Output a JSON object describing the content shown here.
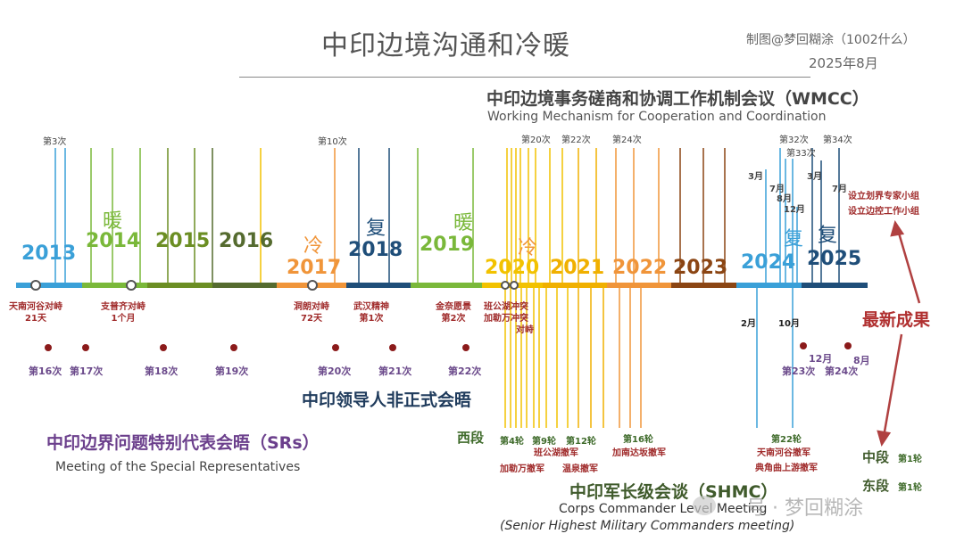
{
  "header": {
    "title": "中印边境沟通和冷暖",
    "credit": "制图@梦回糊涂（1002什么）",
    "date": "2025年8月"
  },
  "wmcc": {
    "title_zh": "中印边境事务磋商和协调工作机制会议（WMCC）",
    "title_en": "Working Mechanism for Cooperation and Coordination",
    "round_labels": [
      "第3次",
      "第10次",
      "第20次",
      "第22次",
      "第24次",
      "第32次",
      "第33次",
      "第34次"
    ],
    "month_labels": [
      "3月",
      "7月",
      "8月",
      "12月",
      "3月",
      "7月"
    ],
    "new_results": [
      "设立划界专家小组",
      "设立边控工作小组"
    ]
  },
  "years": [
    "2013",
    "2014",
    "2015",
    "2016",
    "2017",
    "2018",
    "2019",
    "2020",
    "2021",
    "2022",
    "2023",
    "2024",
    "2025"
  ],
  "states": [
    "暖",
    "冷",
    "复",
    "暖",
    "冷",
    "复",
    "复"
  ],
  "events": [
    {
      "l1": "天南河谷对峙",
      "l2": "21天"
    },
    {
      "l1": "支普齐对峙",
      "l2": "1个月"
    },
    {
      "l1": "洞朗对峙",
      "l2": "72天"
    },
    {
      "l1": "武汉精神",
      "l2": "第1次"
    },
    {
      "l1": "金奈愿景",
      "l2": "第2次"
    },
    {
      "l1": "班公湖冲突",
      "l2": "加勒万冲突"
    },
    {
      "l1": "对峙",
      "l2": ""
    }
  ],
  "srs": {
    "title_zh": "中印边界问题特别代表会晤（SRs）",
    "title_en": "Meeting of the Special Representatives",
    "rounds": [
      "第16次",
      "第17次",
      "第18次",
      "第19次",
      "第20次",
      "第21次",
      "第22次",
      "第23次",
      "第24次"
    ],
    "months": [
      "12月",
      "8月"
    ]
  },
  "informal_summit": "中印领导人非正式会晤",
  "shmc": {
    "title_zh": "中印军长级会谈（SHMC）",
    "title_en": "Corps Commander Level Meeting",
    "title_en2": "(Senior Highest Military Commanders meeting)",
    "west": "西段",
    "middle": "中段",
    "east": "东段",
    "middle_round": "第1轮",
    "east_round": "第1轮",
    "rounds": [
      "第4轮",
      "第9轮",
      "第12轮",
      "第16轮",
      "第22轮"
    ],
    "withdrawals": [
      "班公湖撤军",
      "加勒万撤军",
      "温泉撤军",
      "加南达坂撤军",
      "天南河谷撤军",
      "典角曲上游撤军"
    ],
    "months": [
      "2月",
      "10月"
    ]
  },
  "latest": "最新成果",
  "watermark": "号 · 梦回糊涂",
  "colors": {
    "blue": "#3aa0d8",
    "green": "#7ab83a",
    "olive": "#6b8e23",
    "orange": "#f0953a",
    "navy": "#1f4e79",
    "yellow": "#f2c200",
    "brown": "#8b4513",
    "red": "#a02b2b"
  }
}
